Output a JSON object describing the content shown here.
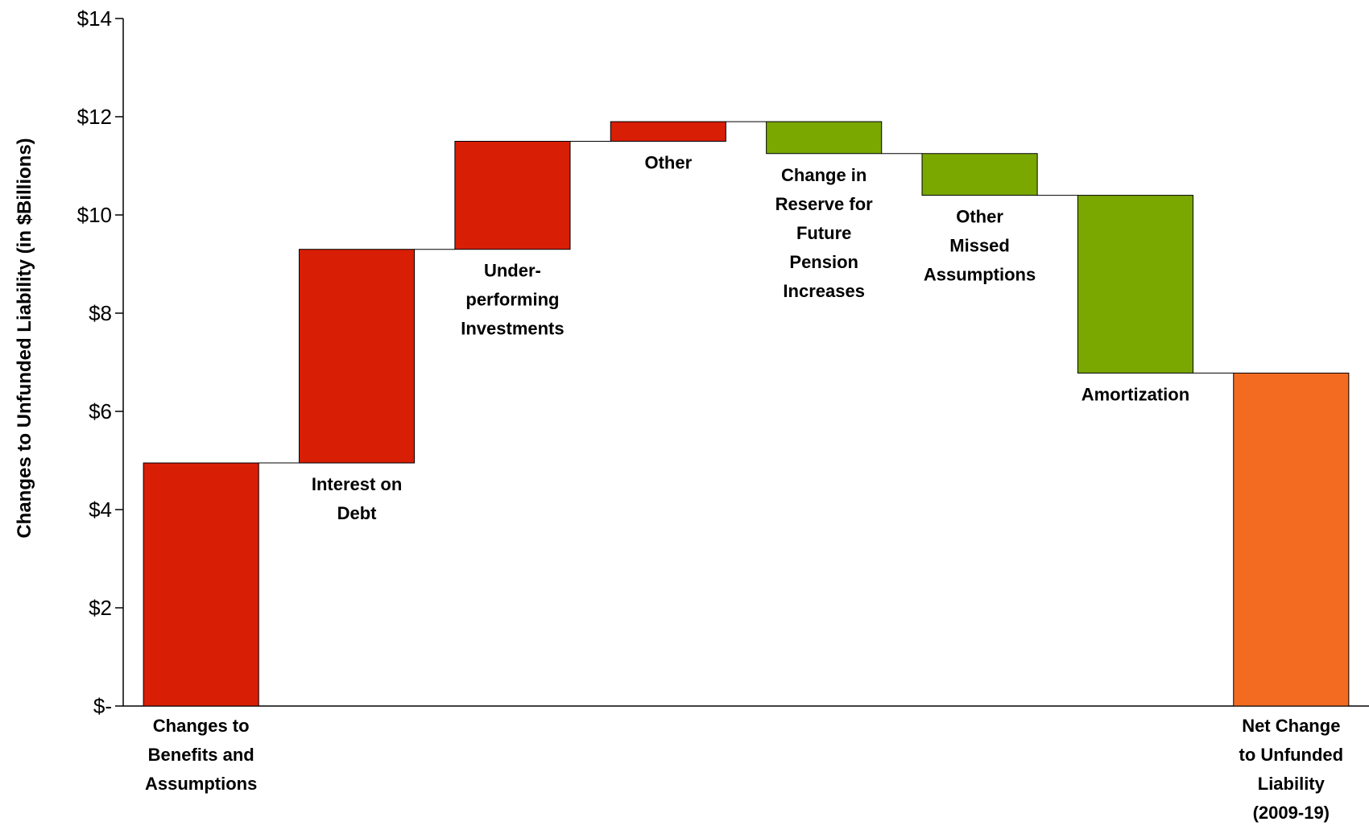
{
  "chart_data": {
    "type": "waterfall",
    "ylabel": "Changes to Unfunded Liability (in $Billions)",
    "ylim": [
      0,
      14
    ],
    "yticks": [
      {
        "value": 0,
        "label": "$-"
      },
      {
        "value": 2,
        "label": "$2"
      },
      {
        "value": 4,
        "label": "$4"
      },
      {
        "value": 6,
        "label": "$6"
      },
      {
        "value": 8,
        "label": "$8"
      },
      {
        "value": 10,
        "label": "$10"
      },
      {
        "value": 12,
        "label": "$12"
      },
      {
        "value": 14,
        "label": "$14"
      }
    ],
    "grid": false,
    "bars": [
      {
        "name": "Changes to Benefits and Assumptions",
        "label_lines": [
          "Changes to",
          "Benefits and",
          "Assumptions"
        ],
        "start": 0,
        "end": 4.95,
        "color": "#d81e05",
        "label_position": "below-axis"
      },
      {
        "name": "Interest on Debt",
        "label_lines": [
          "Interest on",
          "Debt"
        ],
        "start": 4.95,
        "end": 9.3,
        "color": "#d81e05",
        "label_position": "below"
      },
      {
        "name": "Under-performing Investments",
        "label_lines": [
          "Under-",
          "performing",
          "Investments"
        ],
        "start": 9.3,
        "end": 11.5,
        "color": "#d81e05",
        "label_position": "below"
      },
      {
        "name": "Other",
        "label_lines": [
          "Other"
        ],
        "start": 11.5,
        "end": 11.9,
        "color": "#d81e05",
        "label_position": "below"
      },
      {
        "name": "Change in Reserve for Future Pension Increases",
        "label_lines": [
          "Change in",
          "Reserve for",
          "Future",
          "Pension",
          "Increases"
        ],
        "start": 11.9,
        "end": 11.25,
        "color": "#7aa800",
        "label_position": "below"
      },
      {
        "name": "Other Missed Assumptions",
        "label_lines": [
          "Other",
          "Missed",
          "Assumptions"
        ],
        "start": 11.25,
        "end": 10.4,
        "color": "#7aa800",
        "label_position": "below"
      },
      {
        "name": "Amortization",
        "label_lines": [
          "Amortization"
        ],
        "start": 10.4,
        "end": 6.78,
        "color": "#7aa800",
        "label_position": "below"
      },
      {
        "name": "Net Change to Unfunded Liability (2009-19)",
        "label_lines": [
          "Net Change",
          "to Unfunded",
          "Liability",
          "(2009-19)"
        ],
        "start": 0,
        "end": 6.78,
        "color": "#f26b21",
        "label_position": "below-axis"
      }
    ]
  }
}
